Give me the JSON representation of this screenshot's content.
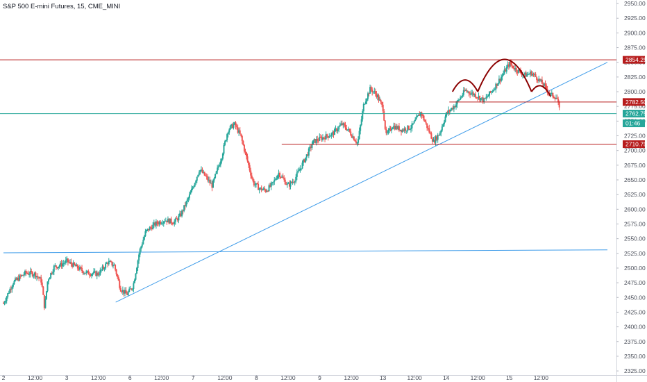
{
  "chart_data": {
    "type": "candlestick",
    "title": "S&P 500 E-mini Futures, 15, CME_MINI",
    "yaxis": {
      "position": "right",
      "range": [
        2318,
        2956
      ],
      "ticks": [
        2325,
        2350,
        2375,
        2400,
        2425,
        2450,
        2475,
        2500,
        2525,
        2550,
        2575,
        2600,
        2625,
        2650,
        2675,
        2700,
        2725,
        2750,
        2775,
        2800,
        2825,
        2850,
        2875,
        2900,
        2925,
        2950
      ],
      "tick_labels": [
        "2325.00",
        "2350.00",
        "2375.00",
        "2400.00",
        "2425.00",
        "2450.00",
        "2475.00",
        "2500.00",
        "2525.00",
        "2550.00",
        "2575.00",
        "2600.00",
        "2625.00",
        "2650.00",
        "2675.00",
        "2700.00",
        "2725.00",
        "2750.00",
        "2775.00",
        "2800.00",
        "2825.00",
        "2850.00",
        "2875.00",
        "2900.00",
        "2925.00",
        "2950.00"
      ]
    },
    "xaxis": {
      "range": [
        0,
        19.1
      ],
      "ticks": [
        {
          "x": 0.0,
          "label": "2"
        },
        {
          "x": 1.0,
          "label": "12:00"
        },
        {
          "x": 2.0,
          "label": "3"
        },
        {
          "x": 3.0,
          "label": "12:00"
        },
        {
          "x": 4.0,
          "label": "6"
        },
        {
          "x": 5.0,
          "label": "12:00"
        },
        {
          "x": 6.0,
          "label": "7"
        },
        {
          "x": 7.0,
          "label": "12:00"
        },
        {
          "x": 8.0,
          "label": "8"
        },
        {
          "x": 9.0,
          "label": "12:00"
        },
        {
          "x": 10.0,
          "label": "9"
        },
        {
          "x": 11.0,
          "label": "12:00"
        },
        {
          "x": 12.0,
          "label": "13"
        },
        {
          "x": 13.0,
          "label": "12:00"
        },
        {
          "x": 14.0,
          "label": "14"
        },
        {
          "x": 15.0,
          "label": "12:00"
        },
        {
          "x": 16.0,
          "label": "15"
        },
        {
          "x": 17.0,
          "label": "12:00"
        }
      ]
    },
    "price_path": [
      [
        0.0,
        2440
      ],
      [
        0.3,
        2475
      ],
      [
        0.7,
        2492
      ],
      [
        1.0,
        2490
      ],
      [
        1.2,
        2478
      ],
      [
        1.3,
        2432
      ],
      [
        1.4,
        2480
      ],
      [
        1.6,
        2502
      ],
      [
        1.8,
        2505
      ],
      [
        2.0,
        2512
      ],
      [
        2.3,
        2502
      ],
      [
        2.6,
        2492
      ],
      [
        3.0,
        2490
      ],
      [
        3.3,
        2510
      ],
      [
        3.5,
        2505
      ],
      [
        3.7,
        2465
      ],
      [
        3.9,
        2455
      ],
      [
        4.1,
        2470
      ],
      [
        4.3,
        2528
      ],
      [
        4.5,
        2562
      ],
      [
        4.8,
        2575
      ],
      [
        5.1,
        2582
      ],
      [
        5.4,
        2578
      ],
      [
        5.6,
        2590
      ],
      [
        5.9,
        2625
      ],
      [
        6.2,
        2668
      ],
      [
        6.4,
        2655
      ],
      [
        6.6,
        2640
      ],
      [
        6.9,
        2690
      ],
      [
        7.1,
        2735
      ],
      [
        7.3,
        2745
      ],
      [
        7.5,
        2725
      ],
      [
        7.7,
        2685
      ],
      [
        7.9,
        2645
      ],
      [
        8.1,
        2635
      ],
      [
        8.3,
        2632
      ],
      [
        8.5,
        2642
      ],
      [
        8.7,
        2662
      ],
      [
        9.0,
        2640
      ],
      [
        9.2,
        2650
      ],
      [
        9.5,
        2682
      ],
      [
        9.8,
        2715
      ],
      [
        10.1,
        2722
      ],
      [
        10.4,
        2728
      ],
      [
        10.7,
        2745
      ],
      [
        10.9,
        2735
      ],
      [
        11.2,
        2712
      ],
      [
        11.4,
        2780
      ],
      [
        11.6,
        2805
      ],
      [
        11.8,
        2795
      ],
      [
        12.0,
        2772
      ],
      [
        12.1,
        2725
      ],
      [
        12.3,
        2742
      ],
      [
        12.6,
        2735
      ],
      [
        12.9,
        2740
      ],
      [
        13.2,
        2765
      ],
      [
        13.4,
        2740
      ],
      [
        13.6,
        2715
      ],
      [
        13.8,
        2730
      ],
      [
        14.0,
        2762
      ],
      [
        14.3,
        2778
      ],
      [
        14.6,
        2802
      ],
      [
        14.9,
        2795
      ],
      [
        15.2,
        2785
      ],
      [
        15.5,
        2805
      ],
      [
        15.8,
        2830
      ],
      [
        16.0,
        2848
      ],
      [
        16.2,
        2838
      ],
      [
        16.5,
        2828
      ],
      [
        16.7,
        2832
      ],
      [
        16.9,
        2822
      ],
      [
        17.1,
        2810
      ],
      [
        17.3,
        2795
      ],
      [
        17.5,
        2790
      ],
      [
        17.6,
        2763
      ]
    ],
    "horizontal_lines": [
      {
        "name": "resistance",
        "value": 2854.25,
        "label": "2854.25",
        "color": "#b71c1c"
      },
      {
        "name": "neckline",
        "value": 2782.5,
        "label": "2782.50",
        "color": "#b71c1c"
      },
      {
        "name": "support",
        "value": 2710.75,
        "label": "2710.75",
        "color": "#b71c1c"
      },
      {
        "name": "last-price",
        "value": 2762.75,
        "label": "2762.75",
        "color": "#26a69a"
      }
    ],
    "trend_lines": [
      {
        "name": "rising-trendline",
        "points": [
          [
            3.55,
            2442
          ],
          [
            19.1,
            2850
          ]
        ],
        "color": "#3d9be9"
      },
      {
        "name": "horizontal-trendline",
        "points": [
          [
            0.0,
            2526
          ],
          [
            19.1,
            2531
          ]
        ],
        "color": "#3d9be9"
      }
    ],
    "pattern_arcs": [
      {
        "name": "left-shoulder-arc",
        "from": [
          14.2,
          2800
        ],
        "to": [
          15.0,
          2800
        ],
        "peak": 2820
      },
      {
        "name": "head-arc",
        "from": [
          15.0,
          2800
        ],
        "to": [
          16.7,
          2800
        ],
        "peak": 2855
      },
      {
        "name": "right-shoulder-arc",
        "from": [
          16.7,
          2800
        ],
        "to": [
          17.3,
          2792
        ],
        "peak": 2810
      }
    ],
    "countdown": "01:46",
    "colors": {
      "up": "#26a69a",
      "down": "#ef5350",
      "level": "#b71c1c",
      "trend": "#3d9be9",
      "arc": "#8b0000"
    }
  }
}
